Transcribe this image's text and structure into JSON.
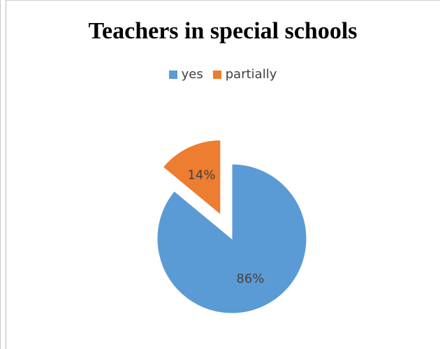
{
  "chart_data": {
    "type": "pie",
    "title": "Teachers in special schools",
    "legend_position": "top",
    "slices": [
      {
        "label": "yes",
        "value": 86,
        "display": "86%",
        "color": "#5b9bd5",
        "exploded": false
      },
      {
        "label": "partially",
        "value": 14,
        "display": "14%",
        "color": "#ed7d31",
        "exploded": true
      }
    ]
  }
}
